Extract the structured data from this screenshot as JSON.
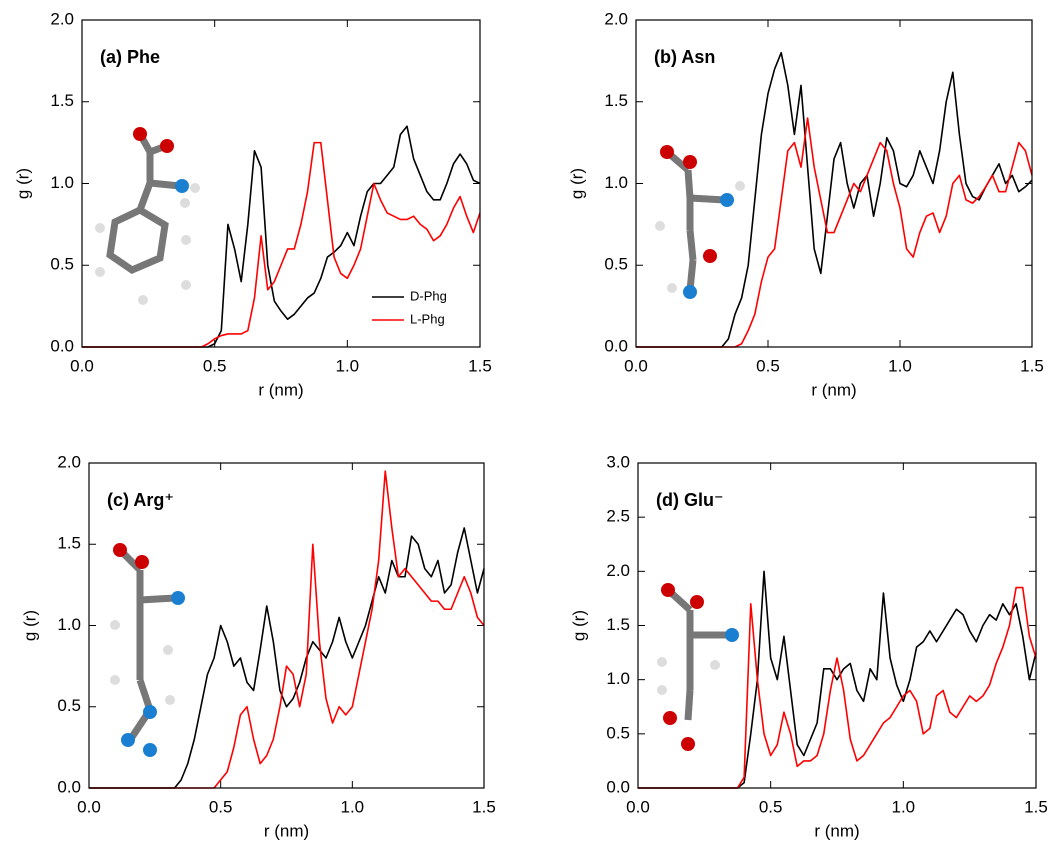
{
  "chart_data": [
    {
      "type": "line",
      "title": "(a) Phe",
      "x_label": "r (nm)",
      "y_label": "g (r)",
      "x": [
        0,
        0.025,
        0.05,
        0.075,
        0.1,
        0.125,
        0.15,
        0.175,
        0.2,
        0.225,
        0.25,
        0.275,
        0.3,
        0.325,
        0.35,
        0.375,
        0.4,
        0.425,
        0.45,
        0.475,
        0.5,
        0.525,
        0.55,
        0.575,
        0.6,
        0.625,
        0.65,
        0.675,
        0.7,
        0.725,
        0.75,
        0.775,
        0.8,
        0.825,
        0.85,
        0.875,
        0.9,
        0.925,
        0.95,
        0.975,
        1,
        1.025,
        1.05,
        1.075,
        1.1,
        1.125,
        1.15,
        1.175,
        1.2,
        1.225,
        1.25,
        1.275,
        1.3,
        1.325,
        1.35,
        1.375,
        1.4,
        1.425,
        1.45,
        1.475,
        1.5
      ],
      "series": [
        {
          "name": "D-Phg",
          "color": "#000000",
          "values": [
            0,
            0,
            0,
            0,
            0,
            0,
            0,
            0,
            0,
            0,
            0,
            0,
            0,
            0,
            0,
            0,
            0,
            0,
            0,
            0,
            0.02,
            0.1,
            0.75,
            0.6,
            0.4,
            0.75,
            1.2,
            1.1,
            0.5,
            0.28,
            0.22,
            0.17,
            0.2,
            0.25,
            0.3,
            0.33,
            0.42,
            0.55,
            0.58,
            0.62,
            0.7,
            0.62,
            0.8,
            0.95,
            1.0,
            1.0,
            1.05,
            1.1,
            1.3,
            1.35,
            1.15,
            1.05,
            0.95,
            0.9,
            0.9,
            1.0,
            1.12,
            1.18,
            1.12,
            1.02,
            1.0
          ]
        },
        {
          "name": "L-Phg",
          "color": "#ff0000",
          "values": [
            0,
            0,
            0,
            0,
            0,
            0,
            0,
            0,
            0,
            0,
            0,
            0,
            0,
            0,
            0,
            0,
            0,
            0,
            0,
            0.02,
            0.05,
            0.07,
            0.08,
            0.08,
            0.08,
            0.1,
            0.3,
            0.68,
            0.35,
            0.4,
            0.5,
            0.6,
            0.6,
            0.75,
            0.95,
            1.25,
            1.25,
            0.9,
            0.55,
            0.45,
            0.42,
            0.5,
            0.6,
            0.8,
            1.0,
            0.9,
            0.82,
            0.8,
            0.78,
            0.78,
            0.8,
            0.75,
            0.72,
            0.65,
            0.68,
            0.75,
            0.85,
            0.92,
            0.8,
            0.7,
            0.82
          ]
        }
      ],
      "xlim": [
        0,
        1.5
      ],
      "xticks": [
        {
          "value": 0,
          "label": "0.0"
        },
        0.5,
        {
          "value": 1,
          "label": "1.0"
        },
        1.5
      ],
      "ylim": [
        0,
        2
      ],
      "yticks": [
        {
          "value": 0,
          "label": "0.0"
        },
        0.5,
        {
          "value": 1,
          "label": "1.0"
        },
        1.5,
        {
          "value": 2,
          "label": "2.0"
        }
      ],
      "legend": "lower right"
    },
    {
      "type": "line",
      "title": "(b) Asn",
      "x_label": "r (nm)",
      "y_label": "g (r)",
      "x": [
        0,
        0.025,
        0.05,
        0.075,
        0.1,
        0.125,
        0.15,
        0.175,
        0.2,
        0.225,
        0.25,
        0.275,
        0.3,
        0.325,
        0.35,
        0.375,
        0.4,
        0.425,
        0.45,
        0.475,
        0.5,
        0.525,
        0.55,
        0.575,
        0.6,
        0.625,
        0.65,
        0.675,
        0.7,
        0.725,
        0.75,
        0.775,
        0.8,
        0.825,
        0.85,
        0.875,
        0.9,
        0.925,
        0.95,
        0.975,
        1,
        1.025,
        1.05,
        1.075,
        1.1,
        1.125,
        1.15,
        1.175,
        1.2,
        1.225,
        1.25,
        1.275,
        1.3,
        1.325,
        1.35,
        1.375,
        1.4,
        1.425,
        1.45,
        1.475,
        1.5
      ],
      "series": [
        {
          "color": "#000000",
          "values": [
            0,
            0,
            0,
            0,
            0,
            0,
            0,
            0,
            0,
            0,
            0,
            0,
            0,
            0,
            0.05,
            0.2,
            0.3,
            0.5,
            0.9,
            1.3,
            1.55,
            1.7,
            1.8,
            1.6,
            1.3,
            1.6,
            1.1,
            0.6,
            0.45,
            0.8,
            1.15,
            1.25,
            1.0,
            0.85,
            1.0,
            1.05,
            0.8,
            1.0,
            1.28,
            1.2,
            1.0,
            0.98,
            1.05,
            1.2,
            1.1,
            1.0,
            1.2,
            1.5,
            1.68,
            1.3,
            1.0,
            0.92,
            0.9,
            0.98,
            1.05,
            1.12,
            1.0,
            1.05,
            0.95,
            0.98,
            1.02
          ]
        },
        {
          "color": "#ff0000",
          "values": [
            0,
            0,
            0,
            0,
            0,
            0,
            0,
            0,
            0,
            0,
            0,
            0,
            0,
            0,
            0,
            0,
            0.02,
            0.1,
            0.2,
            0.4,
            0.55,
            0.6,
            0.9,
            1.2,
            1.25,
            1.1,
            1.4,
            1.1,
            0.9,
            0.7,
            0.7,
            0.8,
            0.9,
            1.0,
            0.95,
            1.05,
            1.15,
            1.25,
            1.2,
            1.0,
            0.85,
            0.6,
            0.55,
            0.7,
            0.8,
            0.82,
            0.7,
            0.8,
            1.0,
            1.05,
            0.9,
            0.88,
            0.92,
            0.98,
            1.05,
            0.95,
            0.95,
            1.1,
            1.25,
            1.2,
            1.05
          ]
        }
      ],
      "xlim": [
        0,
        1.5
      ],
      "xticks": [
        {
          "value": 0,
          "label": "0.0"
        },
        0.5,
        {
          "value": 1,
          "label": "1.0"
        },
        1.5
      ],
      "ylim": [
        0,
        2
      ],
      "yticks": [
        {
          "value": 0,
          "label": "0.0"
        },
        0.5,
        {
          "value": 1,
          "label": "1.0"
        },
        1.5,
        {
          "value": 2,
          "label": "2.0"
        }
      ]
    },
    {
      "type": "line",
      "title": "(c) Arg⁺",
      "x_label": "r (nm)",
      "y_label": "g (r)",
      "x": [
        0,
        0.025,
        0.05,
        0.075,
        0.1,
        0.125,
        0.15,
        0.175,
        0.2,
        0.225,
        0.25,
        0.275,
        0.3,
        0.325,
        0.35,
        0.375,
        0.4,
        0.425,
        0.45,
        0.475,
        0.5,
        0.525,
        0.55,
        0.575,
        0.6,
        0.625,
        0.65,
        0.675,
        0.7,
        0.725,
        0.75,
        0.775,
        0.8,
        0.825,
        0.85,
        0.875,
        0.9,
        0.925,
        0.95,
        0.975,
        1,
        1.025,
        1.05,
        1.075,
        1.1,
        1.125,
        1.15,
        1.175,
        1.2,
        1.225,
        1.25,
        1.275,
        1.3,
        1.325,
        1.35,
        1.375,
        1.4,
        1.425,
        1.45,
        1.475,
        1.5
      ],
      "series": [
        {
          "color": "#000000",
          "values": [
            0,
            0,
            0,
            0,
            0,
            0,
            0,
            0,
            0,
            0,
            0,
            0,
            0,
            0,
            0.05,
            0.15,
            0.3,
            0.5,
            0.7,
            0.8,
            1.0,
            0.9,
            0.75,
            0.8,
            0.65,
            0.6,
            0.85,
            1.12,
            0.9,
            0.6,
            0.5,
            0.55,
            0.65,
            0.8,
            0.9,
            0.85,
            0.8,
            0.9,
            1.05,
            0.9,
            0.8,
            0.9,
            1.0,
            1.15,
            1.3,
            1.2,
            1.4,
            1.3,
            1.3,
            1.55,
            1.5,
            1.35,
            1.3,
            1.4,
            1.2,
            1.25,
            1.45,
            1.6,
            1.4,
            1.2,
            1.35
          ]
        },
        {
          "color": "#ff0000",
          "values": [
            0,
            0,
            0,
            0,
            0,
            0,
            0,
            0,
            0,
            0,
            0,
            0,
            0,
            0,
            0,
            0,
            0,
            0,
            0,
            0,
            0.05,
            0.1,
            0.25,
            0.45,
            0.5,
            0.3,
            0.15,
            0.2,
            0.3,
            0.5,
            0.75,
            0.7,
            0.5,
            0.7,
            1.5,
            0.9,
            0.55,
            0.4,
            0.5,
            0.45,
            0.5,
            0.7,
            0.9,
            1.1,
            1.4,
            1.95,
            1.6,
            1.3,
            1.35,
            1.3,
            1.25,
            1.2,
            1.15,
            1.15,
            1.1,
            1.1,
            1.2,
            1.3,
            1.2,
            1.05,
            1.0
          ]
        }
      ],
      "xlim": [
        0,
        1.5
      ],
      "xticks": [
        {
          "value": 0,
          "label": "0.0"
        },
        0.5,
        {
          "value": 1,
          "label": "1.0"
        },
        1.5
      ],
      "ylim": [
        0,
        2
      ],
      "yticks": [
        {
          "value": 0,
          "label": "0.0"
        },
        0.5,
        {
          "value": 1,
          "label": "1.0"
        },
        1.5,
        {
          "value": 2,
          "label": "2.0"
        }
      ]
    },
    {
      "type": "line",
      "title": "(d) Glu⁻",
      "x_label": "r (nm)",
      "y_label": "g (r)",
      "x": [
        0,
        0.025,
        0.05,
        0.075,
        0.1,
        0.125,
        0.15,
        0.175,
        0.2,
        0.225,
        0.25,
        0.275,
        0.3,
        0.325,
        0.35,
        0.375,
        0.4,
        0.425,
        0.45,
        0.475,
        0.5,
        0.525,
        0.55,
        0.575,
        0.6,
        0.625,
        0.65,
        0.675,
        0.7,
        0.725,
        0.75,
        0.775,
        0.8,
        0.825,
        0.85,
        0.875,
        0.9,
        0.925,
        0.95,
        0.975,
        1,
        1.025,
        1.05,
        1.075,
        1.1,
        1.125,
        1.15,
        1.175,
        1.2,
        1.225,
        1.25,
        1.275,
        1.3,
        1.325,
        1.35,
        1.375,
        1.4,
        1.425,
        1.45,
        1.475,
        1.5
      ],
      "series": [
        {
          "color": "#000000",
          "values": [
            0,
            0,
            0,
            0,
            0,
            0,
            0,
            0,
            0,
            0,
            0,
            0,
            0,
            0,
            0,
            0,
            0.05,
            0.5,
            1.0,
            2.0,
            1.2,
            1.0,
            1.4,
            0.9,
            0.4,
            0.3,
            0.45,
            0.6,
            1.1,
            1.1,
            1.0,
            1.1,
            1.15,
            0.9,
            0.8,
            1.1,
            1.0,
            1.8,
            1.2,
            0.95,
            0.8,
            1.0,
            1.3,
            1.35,
            1.45,
            1.35,
            1.45,
            1.55,
            1.65,
            1.6,
            1.45,
            1.35,
            1.5,
            1.6,
            1.55,
            1.7,
            1.6,
            1.7,
            1.4,
            1.0,
            1.25
          ]
        },
        {
          "color": "#ff0000",
          "values": [
            0,
            0,
            0,
            0,
            0,
            0,
            0,
            0,
            0,
            0,
            0,
            0,
            0,
            0,
            0,
            0,
            0.1,
            1.7,
            1.0,
            0.5,
            0.3,
            0.4,
            0.7,
            0.5,
            0.2,
            0.25,
            0.25,
            0.3,
            0.5,
            0.9,
            1.2,
            0.9,
            0.45,
            0.25,
            0.3,
            0.4,
            0.5,
            0.6,
            0.65,
            0.75,
            0.85,
            0.9,
            0.8,
            0.5,
            0.55,
            0.85,
            0.9,
            0.7,
            0.65,
            0.75,
            0.85,
            0.8,
            0.85,
            0.95,
            1.15,
            1.3,
            1.5,
            1.85,
            1.85,
            1.4,
            1.2
          ]
        }
      ],
      "xlim": [
        0,
        1.5
      ],
      "xticks": [
        {
          "value": 0,
          "label": "0.0"
        },
        0.5,
        {
          "value": 1,
          "label": "1.0"
        },
        1.5
      ],
      "ylim": [
        0,
        3
      ],
      "yticks": [
        {
          "value": 0,
          "label": "0.0"
        },
        0.5,
        {
          "value": 1,
          "label": "1.0"
        },
        1.5,
        {
          "value": 2,
          "label": "2.0"
        },
        2.5,
        {
          "value": 3,
          "label": "3.0"
        }
      ]
    }
  ]
}
